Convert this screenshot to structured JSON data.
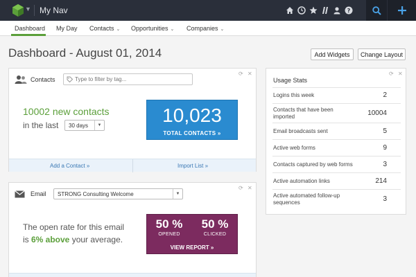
{
  "topbar": {
    "app_title": "My Nav",
    "icons": [
      "home-icon",
      "clock-icon",
      "star-icon",
      "puzzle-icon",
      "user-icon",
      "help-icon",
      "search-icon",
      "plus-icon"
    ]
  },
  "nav": {
    "items": [
      {
        "label": "Dashboard",
        "dropdown": false,
        "active": true
      },
      {
        "label": "My Day",
        "dropdown": false
      },
      {
        "label": "Contacts",
        "dropdown": true
      },
      {
        "label": "Opportunities",
        "dropdown": true
      },
      {
        "label": "Companies",
        "dropdown": true
      }
    ]
  },
  "page": {
    "title": "Dashboard - August 01, 2014",
    "add_widgets": "Add Widgets",
    "change_layout": "Change Layout"
  },
  "contacts": {
    "label": "Contacts",
    "filter_placeholder": "Type to filter by tag...",
    "new_contacts": "10002 new contacts",
    "in_the_last": "in the last",
    "period": "30 days",
    "total": "10,023",
    "total_label": "TOTAL CONTACTS »",
    "add_contact": "Add a Contact »",
    "import_list": "Import List »"
  },
  "email": {
    "label": "Email",
    "selected": "STRONG Consulting Welcome",
    "line1": "The open rate for this email",
    "line2_prefix": "is ",
    "line2_highlight": "6% above",
    "line2_suffix": " your average.",
    "opened_pct": "50 %",
    "opened_label": "OPENED",
    "clicked_pct": "50 %",
    "clicked_label": "CLICKED",
    "view_report": "VIEW REPORT »"
  },
  "usage": {
    "title": "Usage Stats",
    "rows": [
      {
        "label": "Logins this week",
        "value": "2"
      },
      {
        "label": "Contacts that have been imported",
        "value": "10004"
      },
      {
        "label": "Email broadcasts sent",
        "value": "5"
      },
      {
        "label": "Active web forms",
        "value": "9"
      },
      {
        "label": "Contacts captured by web forms",
        "value": "3"
      },
      {
        "label": "Active automation links",
        "value": "214"
      },
      {
        "label": "Active automated follow-up sequences",
        "value": "3"
      }
    ]
  },
  "colors": {
    "accent_green": "#5b9f3a",
    "total_blue": "#2a8bd0",
    "report_plum": "#7c2b5f",
    "topbar": "#2a2f3a"
  }
}
